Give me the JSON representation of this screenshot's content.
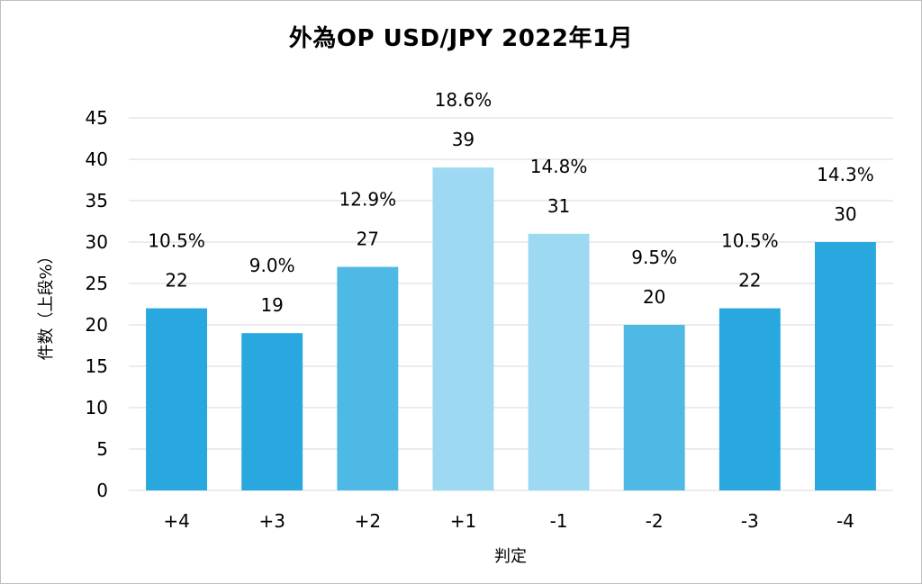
{
  "chart_data": {
    "type": "bar",
    "title": "外為OP USD/JPY 2022年1月",
    "xlabel": "判定",
    "ylabel": "件数（上段%）",
    "categories": [
      "+4",
      "+3",
      "+2",
      "+1",
      "-1",
      "-2",
      "-3",
      "-4"
    ],
    "series": [
      {
        "values": [
          22,
          19,
          27,
          39,
          31,
          20,
          22,
          30
        ],
        "percent_labels": [
          "10.5%",
          "9.0%",
          "12.9%",
          "18.6%",
          "14.8%",
          "9.5%",
          "10.5%",
          "14.3%"
        ],
        "colors": [
          "#29a8e0",
          "#29a8e0",
          "#4fb9e6",
          "#9dd9f2",
          "#9dd9f2",
          "#4fb9e6",
          "#29a8e0",
          "#29a8e0"
        ]
      }
    ],
    "ylim": [
      0,
      45
    ],
    "yticks": [
      0,
      5,
      10,
      15,
      20,
      25,
      30,
      35,
      40,
      45
    ],
    "grid": true,
    "legend": "none"
  }
}
